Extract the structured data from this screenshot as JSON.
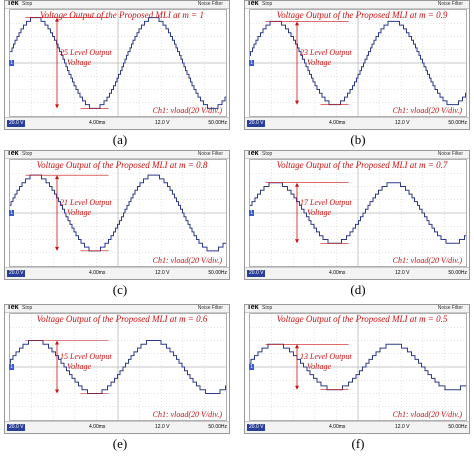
{
  "colors": {
    "wave": "#2d3a8c",
    "annotation": "#cc1111",
    "grid": "#bfbfbf",
    "accent": "#2a3f9a"
  },
  "chart_data": [
    {
      "type": "line",
      "panel_label": "(a)",
      "title": "Voltage Output of the Proposed MLI at m = 1",
      "level_label": "25 Level Output Voltage",
      "level_line1": "25 Level Output",
      "level_line2": "Voltage",
      "channel_label": "Ch1: vload(20 V/div.)",
      "levels": 25,
      "modulation_index": 1.0,
      "y_amplitude_v": 120,
      "scope": {
        "brand": "Tek",
        "state": "Stop",
        "filter": "Noise Filter",
        "volts_div": "20.0 V",
        "time_div": "4.00ms",
        "trigger_level": "12.0 V",
        "freq": "50.00Hz"
      }
    },
    {
      "type": "line",
      "panel_label": "(b)",
      "title": "Voltage Output of the Proposed MLI at m = 0.9",
      "level_label": "23 Level Output Voltage",
      "level_line1": "23 Level Output",
      "level_line2": "Voltage",
      "channel_label": "Ch1: vload(20 V/div.)",
      "levels": 23,
      "modulation_index": 0.9,
      "y_amplitude_v": 110,
      "scope": {
        "brand": "Tek",
        "state": "Stop",
        "filter": "Noise Filter",
        "volts_div": "20.0 V",
        "time_div": "4.00ms",
        "trigger_level": "12.0 V",
        "freq": "50.00Hz"
      }
    },
    {
      "type": "line",
      "panel_label": "(c)",
      "title": "Voltage Output of the Proposed MLI at m = 0.8",
      "level_label": "21 Level Output Voltage",
      "level_line1": "21 Level Output",
      "level_line2": "Voltage",
      "channel_label": "Ch1: vload(20 V/div.)",
      "levels": 21,
      "modulation_index": 0.8,
      "y_amplitude_v": 100,
      "scope": {
        "brand": "Tek",
        "state": "Stop",
        "filter": "Noise Filter",
        "volts_div": "20.0 V",
        "time_div": "4.00ms",
        "trigger_level": "12.0 V",
        "freq": "50.00Hz"
      }
    },
    {
      "type": "line",
      "panel_label": "(d)",
      "title": "Voltage Output of the Proposed MLI at m = 0.7",
      "level_label": "17 Level Output Voltage",
      "level_line1": "17 Level Output",
      "level_line2": "Voltage",
      "channel_label": "Ch1: vload(20 V/div.)",
      "levels": 17,
      "modulation_index": 0.7,
      "y_amplitude_v": 80,
      "scope": {
        "brand": "Tek",
        "state": "Stop",
        "filter": "Noise Filter",
        "volts_div": "20.0 V",
        "time_div": "4.00ms",
        "trigger_level": "12.0 V",
        "freq": "50.00Hz"
      }
    },
    {
      "type": "line",
      "panel_label": "(e)",
      "title": "Voltage Output of the Proposed MLI at m = 0.6",
      "level_label": "15 Level Output Voltage",
      "level_line1": "15 Level Output",
      "level_line2": "Voltage",
      "channel_label": "Ch1: vload(20 V/div.)",
      "levels": 15,
      "modulation_index": 0.6,
      "y_amplitude_v": 70,
      "scope": {
        "brand": "Tek",
        "state": "Stop",
        "filter": "Noise Filter",
        "volts_div": "20.0 V",
        "time_div": "4.00ms",
        "trigger_level": "12.0 V",
        "freq": "50.00Hz"
      }
    },
    {
      "type": "line",
      "panel_label": "(f)",
      "title": "Voltage Output of the Proposed MLI at m = 0.5",
      "level_label": "13 Level Output Voltage",
      "level_line1": "13 Level Output",
      "level_line2": "Voltage",
      "channel_label": "Ch1: vload(20 V/div.)",
      "levels": 13,
      "modulation_index": 0.5,
      "y_amplitude_v": 60,
      "scope": {
        "brand": "Tek",
        "state": "Stop",
        "filter": "Noise Filter",
        "volts_div": "20.0 V",
        "time_div": "4.00ms",
        "trigger_level": "12.0 V",
        "freq": "50.00Hz"
      }
    }
  ]
}
